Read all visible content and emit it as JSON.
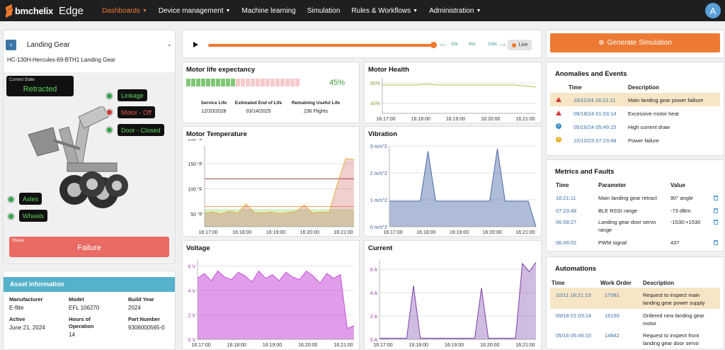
{
  "nav": {
    "brand": "bmc",
    "brand_bold": "helix",
    "product": "Edge",
    "items": [
      {
        "label": "Dashboards",
        "dropdown": true,
        "active": true
      },
      {
        "label": "Device management",
        "dropdown": true
      },
      {
        "label": "Machine learning",
        "dropdown": false
      },
      {
        "label": "Simulation",
        "dropdown": false
      },
      {
        "label": "Rules & Workflows",
        "dropdown": true
      },
      {
        "label": "Administration",
        "dropdown": true
      }
    ],
    "user_initial": "A"
  },
  "asset": {
    "title": "Landing Gear",
    "subtitle": "HC-130H-Hercules-69-BTH1 Landing Gear",
    "state_label": "Current State",
    "state_value": "Retracted",
    "tags": {
      "linkage": "Linkage",
      "motor": "Motor - Off",
      "door": "Door - Closed",
      "axles": "Axles",
      "wheels": "Wheels"
    },
    "status_label": "Status",
    "status_value": "Failure"
  },
  "asset_info": {
    "title": "Asset information",
    "fields": {
      "manufacturer_label": "Manufacturer",
      "manufacturer": "E-flite",
      "model_label": "Model",
      "model": "EFL 106270",
      "build_year_label": "Build Year",
      "build_year": "2024",
      "active_label": "Active",
      "active": "June 21, 2024",
      "hours_label": "Hours of Operation",
      "hours": "14",
      "part_label": "Part Number",
      "part": "9306000565-0"
    }
  },
  "player": {
    "speeds": [
      "10x",
      "50x",
      "100x"
    ],
    "live": "Live"
  },
  "motor_life": {
    "title": "Motor life expectancy",
    "percent": "45%",
    "value": 0.45,
    "service_life_label": "Service Life",
    "service_life": "12/20/2028",
    "end_of_life_label": "Estimated End of Life",
    "end_of_life": "03/14/2025",
    "remaining_label": "Remaining Useful Life",
    "remaining": "236 Flights"
  },
  "chart_data": [
    {
      "type": "line",
      "title": "Motor Health",
      "x_ticks": [
        "16:17:00",
        "16:18:00",
        "16:19:00",
        "16:20:00",
        "16:21:00"
      ],
      "y_ticks": [
        "40%",
        "60%"
      ],
      "ylim": [
        35,
        70
      ],
      "series": [
        {
          "values": [
            63,
            63,
            63,
            63,
            64,
            63,
            63,
            63,
            63,
            63,
            63,
            63,
            63,
            62,
            61
          ]
        }
      ]
    },
    {
      "type": "line",
      "title": "Motor Temperature",
      "x_ticks": [
        "16:17:00",
        "16:18:00",
        "16:19:00",
        "16:20:00",
        "16:21:00"
      ],
      "y_ticks": [
        "50 °F",
        "100 °F",
        "150 °F",
        "200 °F"
      ],
      "ylim": [
        45,
        205
      ],
      "series": [
        {
          "values": [
            72,
            74,
            70,
            76,
            72,
            90,
            73,
            72,
            74,
            71,
            73,
            75,
            88,
            72,
            74,
            73,
            130,
            180,
            178
          ]
        }
      ]
    },
    {
      "type": "area",
      "title": "Vibration",
      "x_ticks": [
        "16:17:00",
        "16:18:00",
        "16:19:00",
        "16:20:00",
        "16:21:00"
      ],
      "y_ticks": [
        "0 m/s^2",
        "1 m/s^2",
        "2 m/s^2",
        "3 m/s^2"
      ],
      "ylim": [
        0,
        3
      ],
      "series": [
        {
          "values": [
            0.95,
            0.95,
            0.95,
            0.95,
            0.95,
            2.8,
            0.95,
            0.95,
            0.95,
            0.95,
            0.95,
            0.95,
            0.95,
            0.95,
            2.9,
            0.95,
            0.95,
            0.95,
            0.95,
            0
          ]
        }
      ]
    },
    {
      "type": "area",
      "title": "Voltage",
      "x_ticks": [
        "16:17:00",
        "16:18:00",
        "16:19:00",
        "16:20:00",
        "16:21:00"
      ],
      "y_ticks": [
        "0 V",
        "2 V",
        "4 V",
        "6 V"
      ],
      "ylim": [
        0,
        6.5
      ],
      "series": [
        {
          "values": [
            5.0,
            5.4,
            4.8,
            5.6,
            5.1,
            4.9,
            5.5,
            5.2,
            4.7,
            5.6,
            5.0,
            5.3,
            4.8,
            5.5,
            5.1,
            4.9,
            5.6,
            5.2,
            4.6,
            5.4,
            5.0,
            5.3,
            0.9,
            1.1
          ]
        }
      ]
    },
    {
      "type": "area",
      "title": "Current",
      "x_ticks": [
        "16:17:00",
        "16:18:00",
        "16:19:00",
        "16:20:00",
        "16:21:00"
      ],
      "y_ticks": [
        "0 A",
        "2 A",
        "4 A",
        "6 A"
      ],
      "ylim": [
        0,
        6.8
      ],
      "series": [
        {
          "values": [
            0.1,
            0.1,
            0.1,
            0.1,
            0.1,
            4.6,
            0.1,
            0.1,
            0.1,
            0.1,
            0.1,
            0.1,
            0.1,
            0.1,
            0.1,
            4.4,
            0.1,
            0.1,
            0.1,
            0.1,
            0.1,
            6.5,
            5.8,
            6.6
          ]
        }
      ]
    }
  ],
  "simulation": {
    "generate_label": "Generate Simulation"
  },
  "anomalies": {
    "title": "Anomalies and Events",
    "headers": [
      "Time",
      "Description"
    ],
    "rows": [
      {
        "icon": "error-icon",
        "time": "10/11/24 16:21:11",
        "desc": "Main landing gear power failiure",
        "highlight": true
      },
      {
        "icon": "error-icon",
        "time": "09/18/24 01:03:14",
        "desc": "Excessive motor heat"
      },
      {
        "icon": "info-icon",
        "time": "05/16/24 05:49:15",
        "desc": "High current draw"
      },
      {
        "icon": "warning-icon",
        "time": "10/10/23 07:23:48",
        "desc": "Power failure"
      }
    ]
  },
  "metrics": {
    "title": "Metrics and Faults",
    "headers": [
      "Time",
      "Parameter",
      "Value"
    ],
    "rows": [
      {
        "time": "16:21:11",
        "param": "Main landing gear retract",
        "param2": "",
        "value": "90° angle"
      },
      {
        "time": "07:23:48",
        "param": "BLE RSSI range",
        "param2": "",
        "value": "-73 dBm"
      },
      {
        "time": "06:58:27",
        "param": "Landing gear door servo",
        "param2": "range",
        "value": "-1530:+1530"
      },
      {
        "time": "06:49:02",
        "param": "PWM signal",
        "param2": "",
        "value": "437"
      }
    ]
  },
  "automations": {
    "title": "Automations",
    "headers": [
      "Time",
      "Work Order",
      "Description"
    ],
    "rows": [
      {
        "time": "10/11 16:21:13",
        "order": "17081",
        "d1": "Request to inspect main",
        "d2": "landing gear power supply",
        "highlight": true
      },
      {
        "time": "09/18 01:03:14",
        "order": "16150",
        "d1": "Ordered new landing gear",
        "d2": "motor"
      },
      {
        "time": "05/16 05:49:15",
        "order": "14842",
        "d1": "Request to inspect front",
        "d2": "landing gear door servo"
      }
    ]
  },
  "colors": {
    "accent": "#f2782f",
    "failure": "#ea6a64",
    "ok_green": "#5ad35a",
    "link_blue": "#3b6fa8",
    "voltage": "#c64fd8",
    "current": "#7a3fa8",
    "vibration": "#4d6aa8",
    "motor_health": "#a8c84a"
  }
}
